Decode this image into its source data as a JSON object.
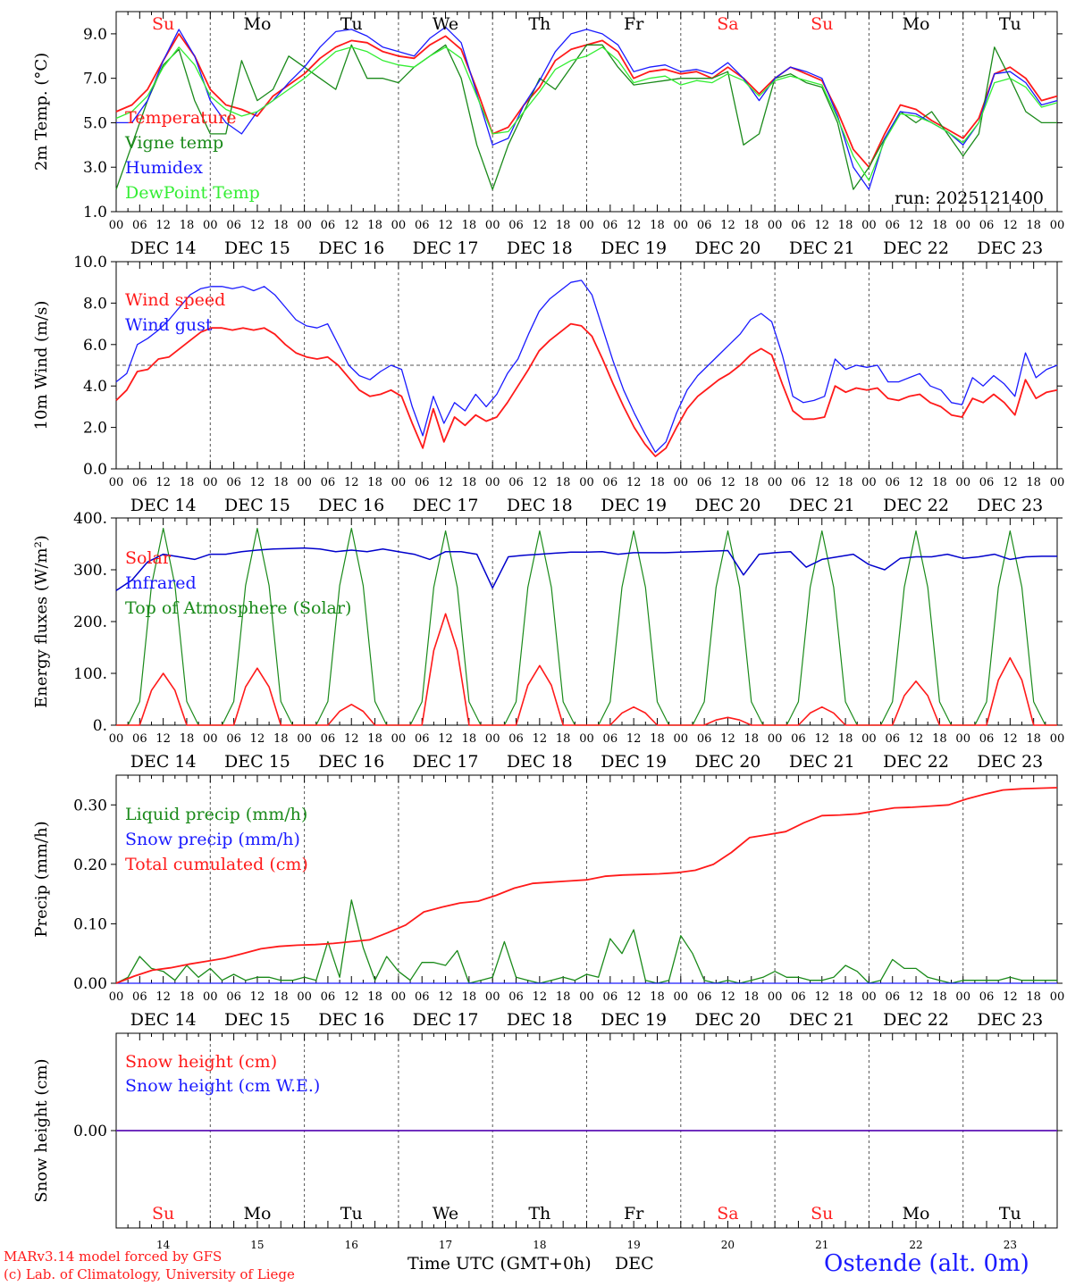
{
  "colors": {
    "red": "#ff1a1a",
    "blue": "#1a1aff",
    "green": "#1a8a1a",
    "lightgreen": "#33ee33",
    "navy": "#0000cc",
    "weekend": "#ff2222",
    "weekday": "#000000",
    "axis": "#000000",
    "grid": "#555555"
  },
  "run_label": "run: 2025121400",
  "days": [
    {
      "date": "DEC 14",
      "abbr": "Su",
      "num": "14",
      "weekend": true
    },
    {
      "date": "DEC 15",
      "abbr": "Mo",
      "num": "15",
      "weekend": false
    },
    {
      "date": "DEC 16",
      "abbr": "Tu",
      "num": "16",
      "weekend": false
    },
    {
      "date": "DEC 17",
      "abbr": "We",
      "num": "17",
      "weekend": false
    },
    {
      "date": "DEC 18",
      "abbr": "Th",
      "num": "18",
      "weekend": false
    },
    {
      "date": "DEC 19",
      "abbr": "Fr",
      "num": "19",
      "weekend": false
    },
    {
      "date": "DEC 20",
      "abbr": "Sa",
      "num": "20",
      "weekend": true
    },
    {
      "date": "DEC 21",
      "abbr": "Su",
      "num": "21",
      "weekend": true
    },
    {
      "date": "DEC 22",
      "abbr": "Mo",
      "num": "22",
      "weekend": false
    },
    {
      "date": "DEC 23",
      "abbr": "Tu",
      "num": "23",
      "weekend": false
    }
  ],
  "hour_labels": [
    "00",
    "06",
    "12",
    "18"
  ],
  "final_hour_label": "00",
  "x_axis_title": "Time UTC (GMT+0h)",
  "x_axis_month": "DEC",
  "footer": {
    "line1": "MARv3.14 model forced by GFS",
    "line2": "(c) Lab. of Climatology, University of Liege",
    "station": "Ostende (alt. 0m)"
  },
  "chart_data": [
    {
      "id": "temperature",
      "type": "line",
      "ylabel": "2m Temp. (°C)",
      "ylim": [
        1,
        10
      ],
      "yticks": [
        1,
        3,
        5,
        7,
        9
      ],
      "ytick_labels": [
        "1.0",
        "3.0",
        "5.0",
        "7.0",
        "9.0"
      ],
      "x_unit": "hours since DEC 14 00 UTC (3-hourly, 0-240)",
      "legend": [
        "Temperature",
        "Vigne temp",
        "Humidex",
        "DewPoint Temp"
      ],
      "series": [
        {
          "name": "Temperature",
          "color": "red",
          "values": [
            5.5,
            5.8,
            6.5,
            7.8,
            9.0,
            8.0,
            6.5,
            5.8,
            5.6,
            5.3,
            6.2,
            6.7,
            7.2,
            7.9,
            8.4,
            8.7,
            8.6,
            8.2,
            8.0,
            7.9,
            8.5,
            8.9,
            8.3,
            6.5,
            4.5,
            4.8,
            5.8,
            6.6,
            7.8,
            8.3,
            8.5,
            8.7,
            8.2,
            7.0,
            7.3,
            7.4,
            7.2,
            7.3,
            7.0,
            7.5,
            7.0,
            6.3,
            7.0,
            7.5,
            7.2,
            6.9,
            5.5,
            3.8,
            3.0,
            4.5,
            5.8,
            5.6,
            5.1,
            4.7,
            4.3,
            5.2,
            7.2,
            7.5,
            7.0,
            6.0,
            6.2
          ]
        },
        {
          "name": "Vigne temp",
          "color": "green",
          "values": [
            2.0,
            4.0,
            6.0,
            7.6,
            8.3,
            6.0,
            4.5,
            4.5,
            7.8,
            6.0,
            6.5,
            8.0,
            7.5,
            7.0,
            6.5,
            8.5,
            7.0,
            7.0,
            6.8,
            7.5,
            8.0,
            8.5,
            7.0,
            4.0,
            2.0,
            4.0,
            5.5,
            7.0,
            6.5,
            7.5,
            8.5,
            8.5,
            7.5,
            6.7,
            6.8,
            6.9,
            7.0,
            7.0,
            7.0,
            7.3,
            4.0,
            4.5,
            7.0,
            7.2,
            6.8,
            6.6,
            5.0,
            2.0,
            3.0,
            4.3,
            5.5,
            5.0,
            5.5,
            4.5,
            3.5,
            4.5,
            8.4,
            7.0,
            5.5,
            5.0,
            5.0
          ]
        },
        {
          "name": "Humidex",
          "color": "blue",
          "values": [
            5.0,
            5.0,
            6.0,
            7.8,
            9.2,
            8.0,
            6.0,
            5.0,
            4.5,
            5.5,
            6.0,
            6.8,
            7.5,
            8.4,
            9.1,
            9.2,
            8.9,
            8.4,
            8.2,
            8.0,
            8.8,
            9.3,
            8.6,
            6.3,
            4.0,
            4.3,
            5.8,
            6.9,
            8.2,
            9.0,
            9.2,
            9.0,
            8.5,
            7.3,
            7.5,
            7.6,
            7.3,
            7.4,
            7.2,
            7.7,
            7.0,
            6.0,
            7.0,
            7.5,
            7.3,
            7.0,
            5.3,
            3.0,
            2.0,
            4.3,
            5.5,
            5.4,
            5.0,
            4.6,
            4.0,
            5.0,
            7.2,
            7.3,
            6.8,
            5.8,
            6.0
          ]
        },
        {
          "name": "DewPoint Temp",
          "color": "lightgreen",
          "values": [
            5.2,
            5.5,
            6.2,
            7.5,
            8.4,
            7.6,
            6.2,
            5.6,
            5.3,
            5.5,
            6.0,
            6.5,
            7.0,
            7.6,
            8.2,
            8.4,
            8.2,
            7.8,
            7.6,
            7.5,
            8.0,
            8.4,
            7.9,
            6.2,
            4.5,
            4.6,
            5.5,
            6.4,
            7.4,
            7.8,
            8.0,
            8.4,
            7.8,
            6.8,
            7.0,
            7.1,
            6.7,
            6.9,
            6.8,
            7.2,
            6.9,
            6.2,
            6.9,
            7.1,
            6.9,
            6.7,
            5.2,
            3.5,
            2.4,
            4.2,
            5.4,
            5.3,
            5.0,
            4.6,
            4.1,
            5.0,
            6.8,
            7.0,
            6.6,
            5.7,
            5.9
          ]
        }
      ]
    },
    {
      "id": "wind",
      "type": "line",
      "ylabel": "10m Wind (m/s)",
      "ylim": [
        0,
        10
      ],
      "yticks": [
        0,
        2,
        4,
        6,
        8,
        10
      ],
      "ytick_labels": [
        "0.0",
        "2.0",
        "4.0",
        "6.0",
        "8.0",
        "10.0"
      ],
      "reference_line": 5,
      "legend": [
        "Wind speed",
        "Wind gust"
      ],
      "series": [
        {
          "name": "Wind speed",
          "color": "red",
          "values": [
            3.3,
            3.8,
            4.7,
            4.8,
            5.3,
            5.4,
            5.8,
            6.2,
            6.6,
            6.8,
            6.8,
            6.7,
            6.8,
            6.7,
            6.8,
            6.5,
            6.0,
            5.6,
            5.4,
            5.3,
            5.4,
            5.0,
            4.4,
            3.8,
            3.5,
            3.6,
            3.8,
            3.5,
            2.2,
            1.0,
            2.9,
            1.3,
            2.5,
            2.1,
            2.6,
            2.3,
            2.5,
            3.2,
            4.0,
            4.8,
            5.7,
            6.2,
            6.6,
            7.0,
            6.9,
            6.4,
            5.3,
            4.1,
            3.0,
            2.0,
            1.2,
            0.6,
            1.0,
            2.0,
            2.9,
            3.5,
            3.9,
            4.3,
            4.6,
            5.0,
            5.5,
            5.8,
            5.5,
            4.1,
            2.8,
            2.4,
            2.4,
            2.5,
            4.0,
            3.7,
            3.9,
            3.8,
            3.9,
            3.4,
            3.3,
            3.5,
            3.6,
            3.2,
            3.0,
            2.6,
            2.5,
            3.4,
            3.2,
            3.6,
            3.2,
            2.6,
            4.3,
            3.4,
            3.7,
            3.8
          ]
        },
        {
          "name": "Wind gust",
          "color": "blue",
          "values": [
            4.2,
            4.6,
            6.0,
            6.3,
            6.7,
            7.2,
            7.8,
            8.4,
            8.7,
            8.8,
            8.8,
            8.7,
            8.8,
            8.6,
            8.8,
            8.4,
            7.8,
            7.2,
            6.9,
            6.8,
            7.0,
            6.0,
            5.0,
            4.5,
            4.3,
            4.7,
            5.0,
            4.8,
            3.0,
            1.6,
            3.5,
            2.2,
            3.2,
            2.8,
            3.6,
            3.0,
            3.6,
            4.6,
            5.3,
            6.5,
            7.6,
            8.2,
            8.6,
            9.0,
            9.1,
            8.4,
            6.8,
            5.2,
            3.8,
            2.7,
            1.7,
            0.8,
            1.3,
            2.7,
            3.8,
            4.5,
            5.0,
            5.5,
            6.0,
            6.5,
            7.2,
            7.5,
            7.1,
            5.5,
            3.5,
            3.2,
            3.3,
            3.5,
            5.3,
            4.8,
            5.0,
            4.9,
            5.0,
            4.2,
            4.2,
            4.4,
            4.6,
            4.0,
            3.8,
            3.2,
            3.1,
            4.4,
            4.0,
            4.5,
            4.1,
            3.5,
            5.6,
            4.4,
            4.8,
            5.0
          ]
        }
      ]
    },
    {
      "id": "energy",
      "type": "line",
      "ylabel": "Energy fluxes (W/m²)",
      "ylim": [
        0,
        400
      ],
      "yticks": [
        0,
        100,
        200,
        300,
        400
      ],
      "ytick_labels": [
        "0.",
        "100.",
        "200.",
        "300.",
        "400."
      ],
      "legend": [
        "Solar",
        "Infrared",
        "Top of Atmosphere (Solar)"
      ],
      "daily_peaks": {
        "Solar": [
          100,
          110,
          40,
          215,
          115,
          35,
          15,
          35,
          85,
          130
        ],
        "Top of Atmosphere (Solar)": [
          380,
          380,
          380,
          375,
          375,
          375,
          375,
          375,
          375,
          375
        ]
      },
      "series": [
        {
          "name": "Infrared",
          "color": "navy",
          "values": [
            260,
            280,
            315,
            330,
            325,
            320,
            330,
            330,
            335,
            338,
            340,
            341,
            342,
            340,
            335,
            338,
            335,
            340,
            335,
            330,
            320,
            335,
            335,
            330,
            265,
            325,
            328,
            330,
            332,
            334,
            334,
            335,
            330,
            333,
            333,
            333,
            334,
            335,
            336,
            337,
            290,
            330,
            333,
            335,
            305,
            320,
            325,
            330,
            310,
            300,
            322,
            325,
            325,
            330,
            322,
            325,
            330,
            320,
            325,
            326,
            326
          ]
        }
      ]
    },
    {
      "id": "precip",
      "type": "line",
      "ylabel": "Precip (mm/h)",
      "ylim": [
        0,
        0.35
      ],
      "yticks": [
        0,
        0.1,
        0.2,
        0.3
      ],
      "ytick_labels": [
        "0.00",
        "0.10",
        "0.20",
        "0.30"
      ],
      "legend": [
        "Liquid precip (mm/h)",
        "Snow precip (mm/h)",
        "Total cumulated (cm)"
      ],
      "series": [
        {
          "name": "Liquid precip (mm/h)",
          "color": "green",
          "values": [
            0,
            0.01,
            0.045,
            0.025,
            0.02,
            0.005,
            0.03,
            0.01,
            0.025,
            0.005,
            0.015,
            0.005,
            0.01,
            0.01,
            0.005,
            0.005,
            0.01,
            0.005,
            0.07,
            0.01,
            0.14,
            0.06,
            0.005,
            0.045,
            0.02,
            0.005,
            0.035,
            0.035,
            0.03,
            0.055,
            0,
            0.005,
            0.01,
            0.07,
            0.01,
            0.005,
            0,
            0.005,
            0.01,
            0.005,
            0.015,
            0.01,
            0.075,
            0.05,
            0.09,
            0.005,
            0,
            0.005,
            0.08,
            0.05,
            0.005,
            0,
            0.005,
            0,
            0.005,
            0.01,
            0.02,
            0.01,
            0.01,
            0.005,
            0.005,
            0.01,
            0.03,
            0.02,
            0,
            0.005,
            0.04,
            0.025,
            0.025,
            0.01,
            0.005,
            0,
            0.005,
            0.005,
            0.005,
            0.005,
            0.01,
            0.005,
            0.005,
            0.005,
            0.005
          ]
        },
        {
          "name": "Snow precip (mm/h)",
          "color": "blue",
          "values": [
            0
          ]
        },
        {
          "name": "Total cumulated (cm)",
          "color": "red",
          "values": [
            0,
            0.012,
            0.022,
            0.026,
            0.032,
            0.037,
            0.042,
            0.05,
            0.058,
            0.062,
            0.064,
            0.065,
            0.067,
            0.07,
            0.073,
            0.085,
            0.098,
            0.12,
            0.128,
            0.135,
            0.138,
            0.148,
            0.16,
            0.168,
            0.17,
            0.172,
            0.174,
            0.18,
            0.182,
            0.183,
            0.184,
            0.186,
            0.19,
            0.2,
            0.22,
            0.245,
            0.25,
            0.255,
            0.27,
            0.282,
            0.283,
            0.285,
            0.29,
            0.295,
            0.296,
            0.298,
            0.3,
            0.31,
            0.318,
            0.325,
            0.327,
            0.328,
            0.329
          ]
        }
      ]
    },
    {
      "id": "snow",
      "type": "line",
      "ylabel": "Snow height (cm)",
      "ylim": [
        -1,
        1
      ],
      "yticks": [
        0
      ],
      "ytick_labels": [
        "0.00"
      ],
      "legend": [
        "Snow height (cm)",
        "Snow height (cm W.E.)"
      ],
      "series": [
        {
          "name": "Snow height (cm)",
          "color": "red",
          "values": [
            0,
            0
          ]
        },
        {
          "name": "Snow height (cm W.E.)",
          "color": "blue",
          "values": [
            0,
            0
          ]
        }
      ]
    }
  ]
}
